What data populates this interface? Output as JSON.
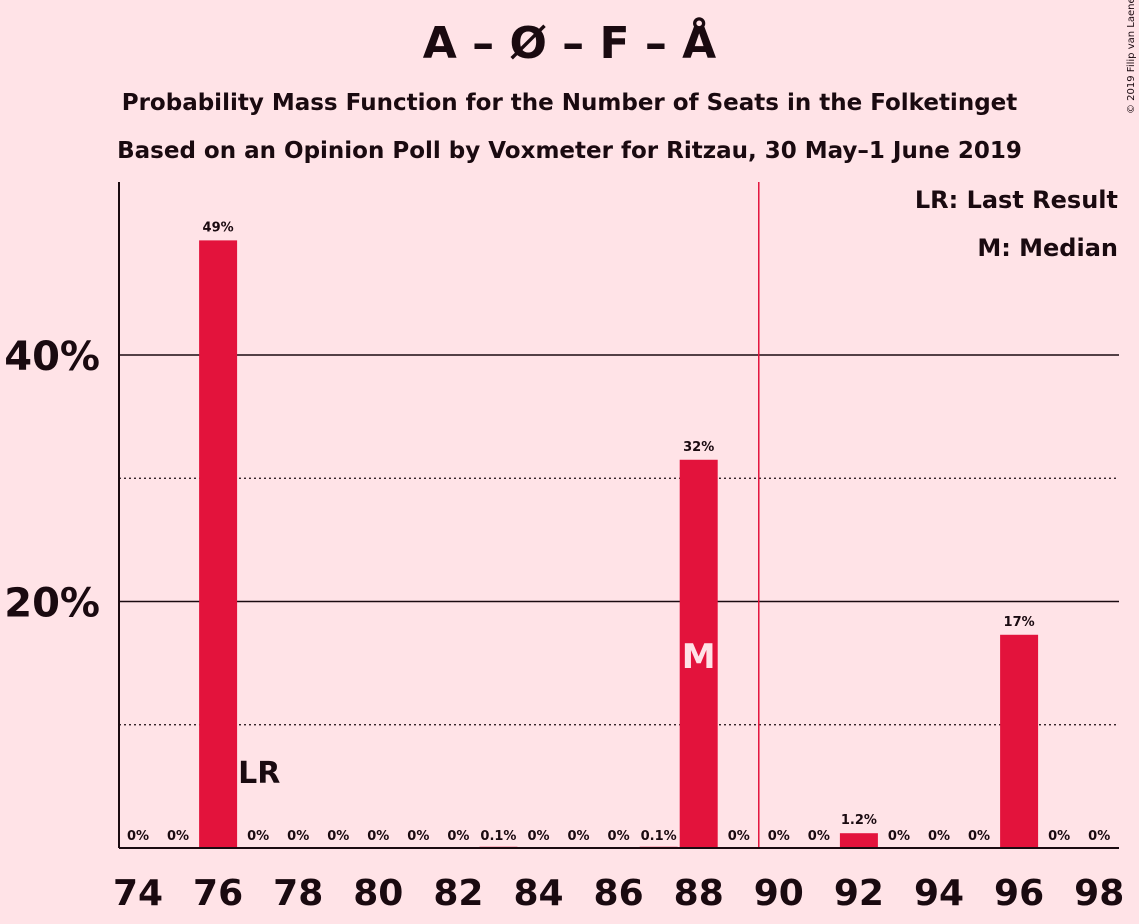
{
  "title": "A – Ø – F – Å",
  "subtitle_1": "Probability Mass Function for the Number of Seats in the Folketinget",
  "subtitle_2": "Based on an Opinion Poll by Voxmeter for Ritzau, 30 May–1 June 2019",
  "copyright": "© 2019 Filip van Laenen",
  "legend": {
    "last_result": "LR: Last Result",
    "median": "M: Median"
  },
  "colors": {
    "background": "#FFE3E7",
    "bar": "#E3133C",
    "majority_line": "#E3133C",
    "text": "#1a0a10"
  },
  "chart_data": {
    "type": "bar",
    "x": [
      74,
      75,
      76,
      77,
      78,
      79,
      80,
      81,
      82,
      83,
      84,
      85,
      86,
      87,
      88,
      89,
      90,
      91,
      92,
      93,
      94,
      95,
      96,
      97,
      98
    ],
    "values": [
      0,
      0,
      49.3,
      0,
      0,
      0,
      0,
      0,
      0,
      0.1,
      0,
      0,
      0,
      0.1,
      31.5,
      0,
      0,
      0,
      1.2,
      0,
      0,
      0,
      17.3,
      0,
      0
    ],
    "value_labels": [
      "0%",
      "0%",
      "49%",
      "0%",
      "0%",
      "0%",
      "0%",
      "0%",
      "0%",
      "0.1%",
      "0%",
      "0%",
      "0%",
      "0.1%",
      "32%",
      "0%",
      "0%",
      "0%",
      "1.2%",
      "0%",
      "0%",
      "0%",
      "17%",
      "0%",
      "0%"
    ],
    "x_tick_labels": [
      "74",
      "76",
      "78",
      "80",
      "82",
      "84",
      "86",
      "88",
      "90",
      "92",
      "94",
      "96",
      "98"
    ],
    "y_tick_labels": [
      {
        "value": 20,
        "label": "20%"
      },
      {
        "value": 40,
        "label": "40%"
      }
    ],
    "ylim": [
      0,
      54
    ],
    "grid_solid": [
      20,
      40
    ],
    "grid_dotted": [
      10,
      30
    ],
    "majority_line_at": 89.5,
    "last_result": {
      "seat": 76,
      "label": "LR"
    },
    "median": {
      "seat": 88,
      "label": "M"
    }
  }
}
